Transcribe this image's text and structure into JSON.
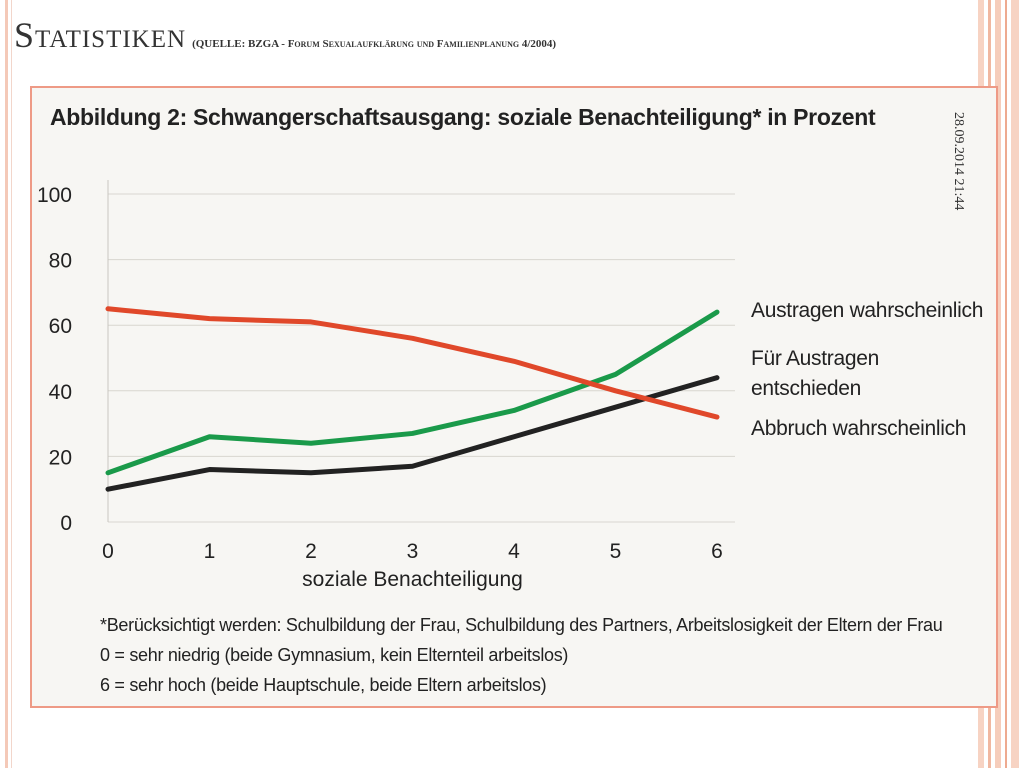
{
  "slide": {
    "title": "Statistiken",
    "source": "(QUELLE: BZGA - Forum Sexualaufklärung und Familienplanung 4/2004)",
    "date": "28.09.2014 21:44"
  },
  "figure": {
    "footnotes": [
      "*Berücksichtigt werden: Schulbildung der Frau, Schulbildung des Partners, Arbeitslosigkeit der Eltern der Frau",
      "0 = sehr niedrig (beide Gymnasium, kein Elternteil arbeitslos)",
      "6 = sehr hoch (beide Hauptschule, beide Eltern arbeitslos)"
    ]
  },
  "chart_data": {
    "type": "line",
    "title": "Abbildung 2: Schwangerschaftsausgang: soziale Benachteiligung* in Prozent",
    "xlabel": "soziale Benachteiligung",
    "ylabel": "",
    "x": [
      0,
      1,
      2,
      3,
      4,
      5,
      6
    ],
    "xlim": [
      0,
      6
    ],
    "ylim": [
      0,
      100
    ],
    "yticks": [
      0,
      20,
      40,
      60,
      80,
      100
    ],
    "grid": "horizontal",
    "legend": "right, direct labels",
    "series": [
      {
        "name": "Austragen wahrscheinlich",
        "color": "#1a9a4a",
        "values": [
          15,
          26,
          24,
          27,
          34,
          45,
          64
        ]
      },
      {
        "name": "Für Austragen entschieden",
        "color": "#222222",
        "values": [
          10,
          16,
          15,
          17,
          26,
          35,
          44
        ]
      },
      {
        "name": "Abbruch wahrscheinlich",
        "color": "#e0482a",
        "values": [
          65,
          62,
          61,
          56,
          49,
          40,
          32
        ]
      }
    ]
  }
}
